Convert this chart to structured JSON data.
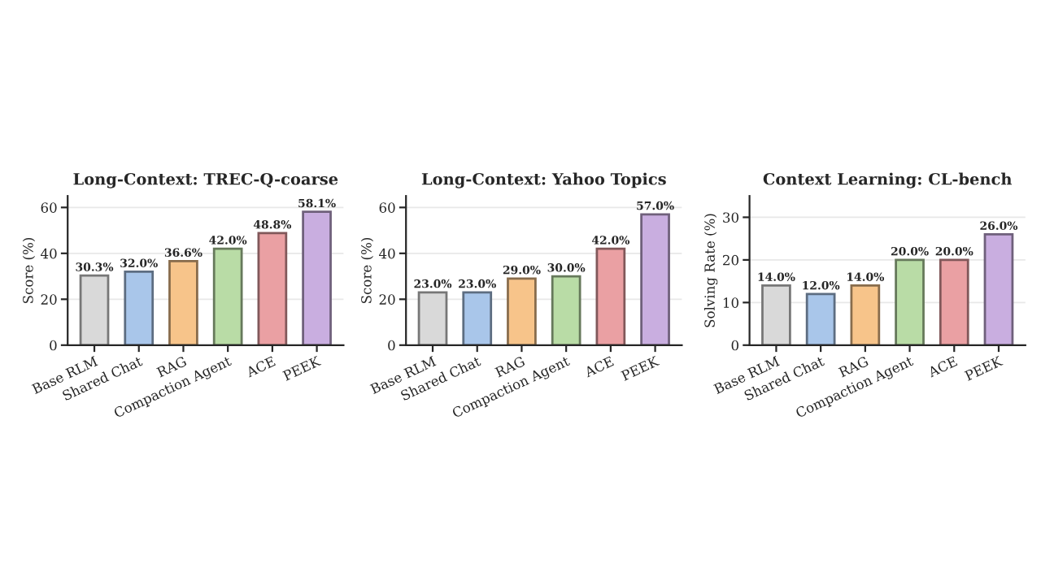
{
  "chart_data": [
    {
      "type": "bar",
      "title": "Long-Context: TREC-Q-coarse",
      "ylabel": "Score (%)",
      "categories": [
        "Base RLM",
        "Shared Chat",
        "RAG",
        "Compaction Agent",
        "ACE",
        "PEEK"
      ],
      "values": [
        30.3,
        32.0,
        36.6,
        42.0,
        48.8,
        58.1
      ],
      "value_labels": [
        "30.3%",
        "32.0%",
        "36.6%",
        "42.0%",
        "48.8%",
        "58.1%"
      ],
      "colors": [
        "#d9d9d9",
        "#a9c6ea",
        "#f7c48a",
        "#b9dca6",
        "#eaa0a3",
        "#c9aee0"
      ],
      "ylim": [
        0,
        65
      ],
      "yticks": [
        0,
        20,
        40,
        60
      ],
      "grid": "y",
      "legend": false
    },
    {
      "type": "bar",
      "title": "Long-Context: Yahoo Topics",
      "ylabel": "Score (%)",
      "categories": [
        "Base RLM",
        "Shared Chat",
        "RAG",
        "Compaction Agent",
        "ACE",
        "PEEK"
      ],
      "values": [
        23.0,
        23.0,
        29.0,
        30.0,
        42.0,
        57.0
      ],
      "value_labels": [
        "23.0%",
        "23.0%",
        "29.0%",
        "30.0%",
        "42.0%",
        "57.0%"
      ],
      "colors": [
        "#d9d9d9",
        "#a9c6ea",
        "#f7c48a",
        "#b9dca6",
        "#eaa0a3",
        "#c9aee0"
      ],
      "ylim": [
        0,
        65
      ],
      "yticks": [
        0,
        20,
        40,
        60
      ],
      "grid": "y",
      "legend": false
    },
    {
      "type": "bar",
      "title": "Context Learning: CL-bench",
      "ylabel": "Solving Rate (%)",
      "categories": [
        "Base RLM",
        "Shared Chat",
        "RAG",
        "Compaction Agent",
        "ACE",
        "PEEK"
      ],
      "values": [
        14.0,
        12.0,
        14.0,
        20.0,
        20.0,
        26.0
      ],
      "value_labels": [
        "14.0%",
        "12.0%",
        "14.0%",
        "20.0%",
        "20.0%",
        "26.0%"
      ],
      "colors": [
        "#d9d9d9",
        "#a9c6ea",
        "#f7c48a",
        "#b9dca6",
        "#eaa0a3",
        "#c9aee0"
      ],
      "ylim": [
        0,
        35
      ],
      "yticks": [
        0,
        10,
        20,
        30
      ],
      "grid": "y",
      "legend": false
    }
  ]
}
